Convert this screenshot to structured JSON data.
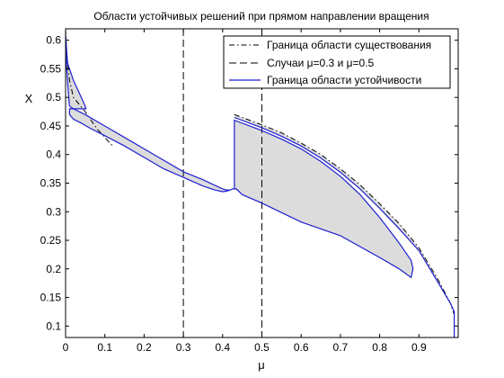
{
  "chart_data": {
    "type": "line",
    "title": "Области устойчивых решений при прямом направлении вращения",
    "xlabel": "μ",
    "ylabel": "X",
    "xlim": [
      0,
      1
    ],
    "ylim": [
      0.08,
      0.62
    ],
    "x_ticks": [
      "0",
      "0.1",
      "0.2",
      "0.3",
      "0.4",
      "0.5",
      "0.6",
      "0.7",
      "0.8",
      "0.9"
    ],
    "x_tick_values": [
      0,
      0.1,
      0.2,
      0.3,
      0.4,
      0.5,
      0.6,
      0.7,
      0.8,
      0.9
    ],
    "y_ticks": [
      "0.1",
      "0.15",
      "0.2",
      "0.25",
      "0.3",
      "0.35",
      "0.4",
      "0.45",
      "0.5",
      "0.55",
      "0.6"
    ],
    "y_tick_values": [
      0.1,
      0.15,
      0.2,
      0.25,
      0.3,
      0.35,
      0.4,
      0.45,
      0.5,
      0.55,
      0.6
    ],
    "grid": false,
    "legend_position": "top-right",
    "colors": {
      "existence": "#000000",
      "cases": "#000000",
      "stability": "#1f1fd0",
      "fill": "#dcdcdc"
    },
    "series": [
      {
        "name": "Граница области существования",
        "style": "dash-dot",
        "segments": [
          {
            "x": [
              0,
              0.002,
              0.01,
              0.02,
              0.05,
              0.08,
              0.12
            ],
            "y": [
              0.62,
              0.58,
              0.53,
              0.5,
              0.475,
              0.445,
              0.415
            ]
          },
          {
            "x": [
              0.43,
              0.5,
              0.55,
              0.6,
              0.65,
              0.7,
              0.75,
              0.8,
              0.85,
              0.9,
              0.95,
              0.98,
              0.99
            ],
            "y": [
              0.47,
              0.452,
              0.438,
              0.42,
              0.4,
              0.375,
              0.347,
              0.314,
              0.279,
              0.237,
              0.18,
              0.14,
              0.12
            ]
          }
        ]
      },
      {
        "name": "Случаи μ=0.3 и μ=0.5",
        "style": "dashed",
        "x_values": [
          0.3,
          0.5
        ]
      },
      {
        "name": "Граница области устойчивости",
        "style": "solid",
        "segments": [
          {
            "x": [
              0,
              0.005,
              0.01,
              0.02,
              0.03,
              0.04,
              0.05,
              0.052,
              0.01,
              0.01,
              0.02,
              0.04,
              0.06,
              0.1,
              0.15,
              0.2,
              0.25,
              0.3,
              0.35,
              0.38,
              0.4,
              0.41,
              0.42,
              0.425,
              0.43,
              0.43,
              0.5,
              0.55,
              0.6,
              0.65,
              0.7,
              0.75,
              0.8,
              0.85,
              0.88,
              0.885,
              0.88,
              0.85,
              0.8,
              0.7,
              0.6,
              0.5,
              0.45,
              0.435,
              0.425,
              0.42,
              0.41,
              0.4,
              0.35,
              0.3,
              0.25,
              0.2,
              0.15,
              0.1,
              0.05,
              0.02,
              0.01,
              0.008,
              0.006,
              0.004,
              0.002,
              0
            ],
            "y": [
              0.61,
              0.56,
              0.55,
              0.53,
              0.515,
              0.5,
              0.485,
              0.48,
              0.48,
              0.47,
              0.462,
              0.455,
              0.447,
              0.433,
              0.415,
              0.395,
              0.375,
              0.36,
              0.345,
              0.338,
              0.335,
              0.336,
              0.338,
              0.34,
              0.34,
              0.46,
              0.442,
              0.427,
              0.41,
              0.388,
              0.362,
              0.33,
              0.29,
              0.245,
              0.215,
              0.2,
              0.185,
              0.2,
              0.22,
              0.258,
              0.282,
              0.315,
              0.33,
              0.34,
              0.34,
              0.338,
              0.338,
              0.34,
              0.356,
              0.37,
              0.39,
              0.41,
              0.43,
              0.45,
              0.47,
              0.48,
              0.485,
              0.5,
              0.52,
              0.54,
              0.56,
              0.58
            ]
          },
          {
            "x": [
              0.43,
              0.5,
              0.55,
              0.6,
              0.65,
              0.7,
              0.75,
              0.8,
              0.85,
              0.9,
              0.95,
              0.98,
              0.99,
              0.99
            ],
            "y": [
              0.465,
              0.447,
              0.432,
              0.415,
              0.394,
              0.369,
              0.34,
              0.306,
              0.27,
              0.232,
              0.175,
              0.14,
              0.125,
              0.08
            ]
          }
        ]
      }
    ]
  }
}
